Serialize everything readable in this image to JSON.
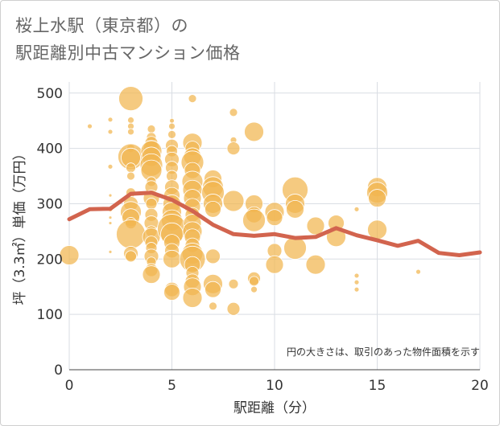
{
  "title_line1": "桜上水駅（東京都）の",
  "title_line2": "駅距離別中古マンション価格",
  "chart_data": {
    "type": "scatter",
    "title": "桜上水駅（東京都）の駅距離別中古マンション価格",
    "xlabel": "駅距離（分）",
    "ylabel": "坪（3.3㎡）単価（万円）",
    "xlim": [
      0,
      20
    ],
    "ylim": [
      0,
      520
    ],
    "xticks": [
      0,
      5,
      10,
      15,
      20
    ],
    "yticks": [
      0,
      100,
      200,
      300,
      400,
      500
    ],
    "grid": true,
    "note": "円の大きさは、取引のあった物件面積を示す",
    "colors": {
      "bubble": "#f1b54f",
      "line": "#d2644e"
    },
    "points": [
      {
        "x": 0,
        "y": 207,
        "s": 12
      },
      {
        "x": 1,
        "y": 440,
        "s": 3
      },
      {
        "x": 2,
        "y": 452,
        "s": 3
      },
      {
        "x": 2,
        "y": 430,
        "s": 3
      },
      {
        "x": 2,
        "y": 367,
        "s": 3
      },
      {
        "x": 2,
        "y": 315,
        "s": 2
      },
      {
        "x": 2,
        "y": 290,
        "s": 3
      },
      {
        "x": 2,
        "y": 275,
        "s": 2
      },
      {
        "x": 2,
        "y": 265,
        "s": 2
      },
      {
        "x": 2,
        "y": 213,
        "s": 2
      },
      {
        "x": 3,
        "y": 490,
        "s": 15
      },
      {
        "x": 3,
        "y": 451,
        "s": 4
      },
      {
        "x": 3,
        "y": 440,
        "s": 4
      },
      {
        "x": 3,
        "y": 430,
        "s": 4
      },
      {
        "x": 3,
        "y": 400,
        "s": 5
      },
      {
        "x": 3,
        "y": 385,
        "s": 16
      },
      {
        "x": 3,
        "y": 383,
        "s": 12
      },
      {
        "x": 3,
        "y": 365,
        "s": 6
      },
      {
        "x": 3,
        "y": 350,
        "s": 5
      },
      {
        "x": 3,
        "y": 320,
        "s": 6
      },
      {
        "x": 3,
        "y": 300,
        "s": 9
      },
      {
        "x": 3,
        "y": 285,
        "s": 13
      },
      {
        "x": 3,
        "y": 275,
        "s": 11
      },
      {
        "x": 3,
        "y": 265,
        "s": 7
      },
      {
        "x": 3,
        "y": 245,
        "s": 18
      },
      {
        "x": 3,
        "y": 210,
        "s": 9
      },
      {
        "x": 3,
        "y": 205,
        "s": 7
      },
      {
        "x": 4,
        "y": 435,
        "s": 5
      },
      {
        "x": 4,
        "y": 420,
        "s": 6
      },
      {
        "x": 4,
        "y": 410,
        "s": 8
      },
      {
        "x": 4,
        "y": 400,
        "s": 10
      },
      {
        "x": 4,
        "y": 395,
        "s": 13
      },
      {
        "x": 4,
        "y": 385,
        "s": 12
      },
      {
        "x": 4,
        "y": 370,
        "s": 14
      },
      {
        "x": 4,
        "y": 360,
        "s": 13
      },
      {
        "x": 4,
        "y": 340,
        "s": 6
      },
      {
        "x": 4,
        "y": 330,
        "s": 8
      },
      {
        "x": 4,
        "y": 310,
        "s": 10
      },
      {
        "x": 4,
        "y": 300,
        "s": 7
      },
      {
        "x": 4,
        "y": 280,
        "s": 8
      },
      {
        "x": 4,
        "y": 265,
        "s": 9
      },
      {
        "x": 4,
        "y": 250,
        "s": 7
      },
      {
        "x": 4,
        "y": 240,
        "s": 11
      },
      {
        "x": 4,
        "y": 230,
        "s": 8
      },
      {
        "x": 4,
        "y": 220,
        "s": 7
      },
      {
        "x": 4,
        "y": 205,
        "s": 9
      },
      {
        "x": 4,
        "y": 195,
        "s": 6
      },
      {
        "x": 4,
        "y": 180,
        "s": 8
      },
      {
        "x": 4,
        "y": 172,
        "s": 11
      },
      {
        "x": 5,
        "y": 450,
        "s": 3
      },
      {
        "x": 5,
        "y": 440,
        "s": 4
      },
      {
        "x": 5,
        "y": 425,
        "s": 5
      },
      {
        "x": 5,
        "y": 405,
        "s": 8
      },
      {
        "x": 5,
        "y": 395,
        "s": 7
      },
      {
        "x": 5,
        "y": 380,
        "s": 9
      },
      {
        "x": 5,
        "y": 365,
        "s": 8
      },
      {
        "x": 5,
        "y": 350,
        "s": 7
      },
      {
        "x": 5,
        "y": 330,
        "s": 9
      },
      {
        "x": 5,
        "y": 315,
        "s": 10
      },
      {
        "x": 5,
        "y": 300,
        "s": 11
      },
      {
        "x": 5,
        "y": 285,
        "s": 12
      },
      {
        "x": 5,
        "y": 270,
        "s": 13
      },
      {
        "x": 5,
        "y": 255,
        "s": 18
      },
      {
        "x": 5,
        "y": 245,
        "s": 14
      },
      {
        "x": 5,
        "y": 230,
        "s": 10
      },
      {
        "x": 5,
        "y": 215,
        "s": 9
      },
      {
        "x": 5,
        "y": 200,
        "s": 11
      },
      {
        "x": 5,
        "y": 145,
        "s": 9
      },
      {
        "x": 5,
        "y": 140,
        "s": 10
      },
      {
        "x": 6,
        "y": 490,
        "s": 5
      },
      {
        "x": 6,
        "y": 410,
        "s": 12
      },
      {
        "x": 6,
        "y": 400,
        "s": 9
      },
      {
        "x": 6,
        "y": 385,
        "s": 11
      },
      {
        "x": 6,
        "y": 375,
        "s": 14
      },
      {
        "x": 6,
        "y": 360,
        "s": 10
      },
      {
        "x": 6,
        "y": 340,
        "s": 13
      },
      {
        "x": 6,
        "y": 325,
        "s": 12
      },
      {
        "x": 6,
        "y": 310,
        "s": 11
      },
      {
        "x": 6,
        "y": 295,
        "s": 10
      },
      {
        "x": 6,
        "y": 280,
        "s": 9
      },
      {
        "x": 6,
        "y": 265,
        "s": 11
      },
      {
        "x": 6,
        "y": 250,
        "s": 12
      },
      {
        "x": 6,
        "y": 240,
        "s": 10
      },
      {
        "x": 6,
        "y": 225,
        "s": 9
      },
      {
        "x": 6,
        "y": 210,
        "s": 13
      },
      {
        "x": 6,
        "y": 200,
        "s": 16
      },
      {
        "x": 6,
        "y": 190,
        "s": 10
      },
      {
        "x": 6,
        "y": 175,
        "s": 8
      },
      {
        "x": 6,
        "y": 160,
        "s": 9
      },
      {
        "x": 6,
        "y": 150,
        "s": 11
      },
      {
        "x": 6,
        "y": 130,
        "s": 12
      },
      {
        "x": 7,
        "y": 345,
        "s": 11
      },
      {
        "x": 7,
        "y": 330,
        "s": 13
      },
      {
        "x": 7,
        "y": 320,
        "s": 14
      },
      {
        "x": 7,
        "y": 300,
        "s": 12
      },
      {
        "x": 7,
        "y": 290,
        "s": 10
      },
      {
        "x": 7,
        "y": 205,
        "s": 9
      },
      {
        "x": 7,
        "y": 155,
        "s": 12
      },
      {
        "x": 7,
        "y": 145,
        "s": 10
      },
      {
        "x": 7,
        "y": 115,
        "s": 5
      },
      {
        "x": 8,
        "y": 465,
        "s": 5
      },
      {
        "x": 8,
        "y": 415,
        "s": 4
      },
      {
        "x": 8,
        "y": 400,
        "s": 8
      },
      {
        "x": 8,
        "y": 305,
        "s": 13
      },
      {
        "x": 8,
        "y": 155,
        "s": 6
      },
      {
        "x": 8,
        "y": 110,
        "s": 8
      },
      {
        "x": 9,
        "y": 430,
        "s": 12
      },
      {
        "x": 9,
        "y": 300,
        "s": 11
      },
      {
        "x": 9,
        "y": 280,
        "s": 10
      },
      {
        "x": 9,
        "y": 270,
        "s": 14
      },
      {
        "x": 9,
        "y": 165,
        "s": 8
      },
      {
        "x": 9,
        "y": 160,
        "s": 6
      },
      {
        "x": 9,
        "y": 145,
        "s": 4
      },
      {
        "x": 10,
        "y": 285,
        "s": 12
      },
      {
        "x": 10,
        "y": 275,
        "s": 10
      },
      {
        "x": 10,
        "y": 215,
        "s": 9
      },
      {
        "x": 10,
        "y": 190,
        "s": 11
      },
      {
        "x": 11,
        "y": 325,
        "s": 16
      },
      {
        "x": 11,
        "y": 300,
        "s": 12
      },
      {
        "x": 11,
        "y": 290,
        "s": 11
      },
      {
        "x": 11,
        "y": 220,
        "s": 14
      },
      {
        "x": 12,
        "y": 260,
        "s": 11
      },
      {
        "x": 12,
        "y": 190,
        "s": 12
      },
      {
        "x": 13,
        "y": 265,
        "s": 10
      },
      {
        "x": 13,
        "y": 240,
        "s": 12
      },
      {
        "x": 14,
        "y": 290,
        "s": 3
      },
      {
        "x": 14,
        "y": 170,
        "s": 3
      },
      {
        "x": 14,
        "y": 158,
        "s": 3
      },
      {
        "x": 14,
        "y": 145,
        "s": 3
      },
      {
        "x": 15,
        "y": 330,
        "s": 12
      },
      {
        "x": 15,
        "y": 320,
        "s": 13
      },
      {
        "x": 15,
        "y": 310,
        "s": 11
      },
      {
        "x": 15,
        "y": 253,
        "s": 12
      },
      {
        "x": 17,
        "y": 177,
        "s": 3
      }
    ],
    "trend": {
      "x": [
        0,
        1,
        2,
        3,
        4,
        5,
        6,
        7,
        8,
        9,
        10,
        11,
        12,
        13,
        14,
        15,
        16,
        17,
        18,
        19,
        20
      ],
      "y": [
        272,
        290,
        291,
        318,
        320,
        307,
        287,
        262,
        245,
        242,
        245,
        238,
        240,
        256,
        243,
        234,
        224,
        233,
        211,
        207,
        212
      ]
    }
  }
}
